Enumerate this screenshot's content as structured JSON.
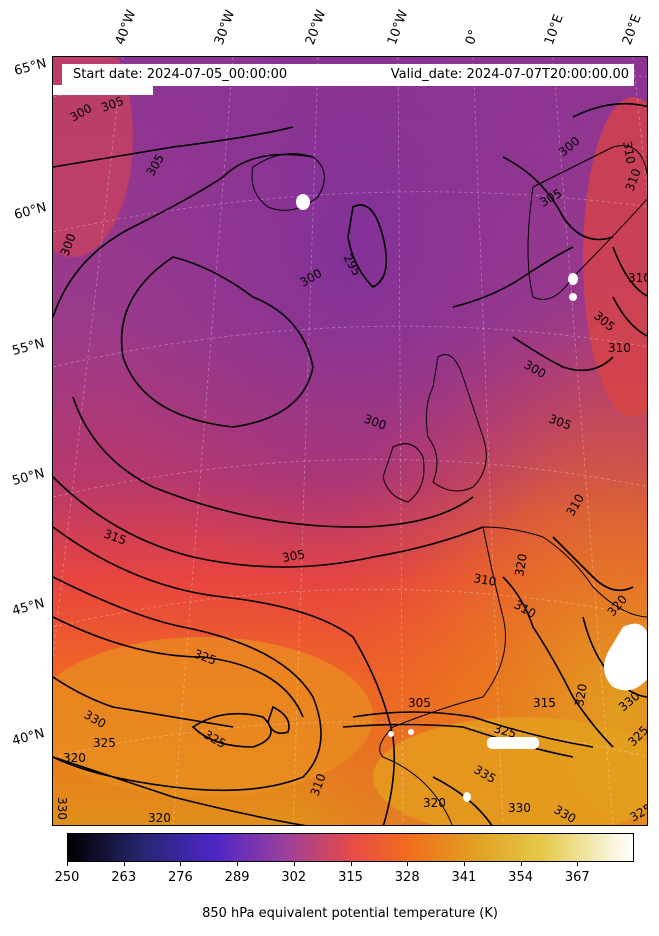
{
  "header": {
    "start_date": "Start date: 2024-07-05_00:00:00",
    "valid_date": "Valid_date: 2024-07-07T20:00:00.00"
  },
  "longitude_labels": [
    "40°W",
    "30°W",
    "20°W",
    "10°W",
    "0°",
    "10°E",
    "20°E"
  ],
  "latitude_labels": [
    "65°N",
    "60°N",
    "55°N",
    "50°N",
    "45°N",
    "40°N"
  ],
  "contour_labels": [
    "305",
    "300",
    "305",
    "300",
    "295",
    "300",
    "305",
    "310",
    "300",
    "300",
    "305",
    "310",
    "310",
    "315",
    "305",
    "310",
    "310",
    "320",
    "330",
    "325",
    "320",
    "325",
    "330",
    "325",
    "320",
    "305",
    "325",
    "315",
    "320",
    "335",
    "330",
    "330",
    "325",
    "310",
    "320",
    "330",
    "320",
    "310",
    "300",
    "305",
    "310",
    "325"
  ],
  "colorbar": {
    "label": "850 hPa equivalent potential temperature (K)",
    "ticks": [
      "250",
      "263",
      "276",
      "289",
      "302",
      "315",
      "328",
      "341",
      "354",
      "367"
    ],
    "colormap": "CMRmap"
  }
}
